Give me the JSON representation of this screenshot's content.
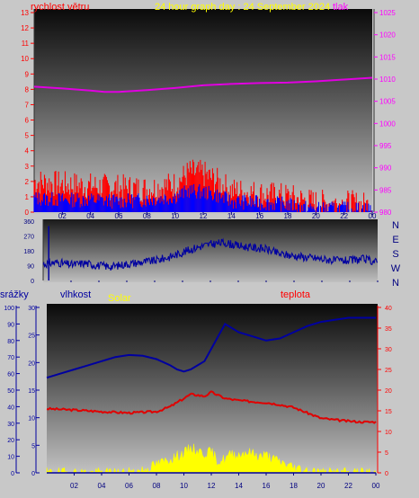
{
  "titles": {
    "wind_speed": "rychlost větru",
    "graph_title": "24 hour graph day : 24 September 2024",
    "pressure": "tlak",
    "rain": "srážky",
    "humidity": "vlhkost",
    "solar": "Solar",
    "temperature": "teplota"
  },
  "colors": {
    "wind_speed": "#ff0000",
    "wind_gust": "#ff0000",
    "wind_avg": "#0000ff",
    "pressure": "#e000e0",
    "direction": "#0000a0",
    "humidity": "#0000a0",
    "temperature": "#e00000",
    "solar": "#ffff00",
    "rain": "#0000a0",
    "title": "#ffff00",
    "left_axis": "#ff0000",
    "right_axis": "#ff00ff",
    "compass_text": "#000080",
    "rain_axis": "#0000a0",
    "temp_axis": "#ff0000"
  },
  "x_ticks": [
    "02",
    "04",
    "06",
    "08",
    "10",
    "12",
    "14",
    "16",
    "18",
    "20",
    "22",
    "00"
  ],
  "chart_data": [
    {
      "type": "line",
      "name": "wind_pressure",
      "y_left_ticks": [
        "0",
        "1",
        "2",
        "3",
        "4",
        "5",
        "6",
        "7",
        "8",
        "9",
        "10",
        "11",
        "12",
        "13"
      ],
      "y_right_ticks": [
        "980",
        "985",
        "990",
        "995",
        "1000",
        "1005",
        "1010",
        "1015",
        "1020",
        "1025"
      ],
      "ylim_left": [
        0,
        13
      ],
      "ylim_right": [
        980,
        1025
      ],
      "xlim_hours": [
        0,
        24
      ],
      "pressure": {
        "x": [
          0,
          2,
          4,
          5,
          6,
          8,
          10,
          12,
          14,
          16,
          18,
          20,
          22,
          24
        ],
        "y": [
          1008.3,
          1007.9,
          1007.4,
          1007.1,
          1007.1,
          1007.5,
          1008.0,
          1008.6,
          1008.9,
          1009.1,
          1009.2,
          1009.5,
          1009.9,
          1010.3
        ]
      },
      "wind_gust": {
        "x": [
          0,
          2,
          4,
          6,
          8,
          10,
          11,
          12,
          13,
          14,
          16,
          18,
          19,
          20,
          22,
          24
        ],
        "y": [
          2.0,
          1.8,
          1.7,
          1.6,
          1.5,
          1.8,
          2.6,
          2.5,
          2.0,
          1.4,
          1.2,
          1.0,
          0.8,
          0.6,
          0.6,
          0.4
        ]
      },
      "wind_avg": {
        "x": [
          0,
          2,
          4,
          6,
          8,
          10,
          11,
          12,
          13,
          14,
          16,
          18,
          19,
          20,
          22,
          24
        ],
        "y": [
          0.9,
          0.8,
          0.8,
          0.7,
          0.8,
          1.0,
          1.4,
          1.3,
          1.1,
          0.7,
          0.6,
          0.5,
          0.3,
          0.2,
          0.2,
          0.2
        ]
      }
    },
    {
      "type": "line",
      "name": "wind_direction",
      "y_ticks": [
        "0",
        "90",
        "180",
        "270",
        "360"
      ],
      "compass": [
        "N",
        "W",
        "S",
        "E",
        "N"
      ],
      "ylim": [
        0,
        360
      ],
      "x": [
        0,
        1,
        2,
        3,
        4,
        5,
        6,
        7,
        8,
        9,
        10,
        11,
        12,
        13,
        14,
        15,
        16,
        17,
        18,
        19,
        20,
        21,
        22,
        23,
        24
      ],
      "y": [
        100,
        110,
        95,
        105,
        90,
        85,
        100,
        110,
        120,
        140,
        170,
        200,
        220,
        230,
        210,
        200,
        190,
        160,
        150,
        140,
        130,
        120,
        120,
        130,
        110
      ]
    },
    {
      "type": "line",
      "name": "rain_humidity_temp_solar",
      "rain_ticks": [
        "0",
        "10",
        "20",
        "30",
        "40",
        "50",
        "60",
        "70",
        "80",
        "90",
        "100"
      ],
      "humidity_ticks": [
        "0",
        "5",
        "10",
        "15",
        "20",
        "25",
        "30"
      ],
      "temp_ticks": [
        "0",
        "5",
        "10",
        "15",
        "20",
        "25",
        "30",
        "35",
        "40"
      ],
      "ylim_rain": [
        0,
        100
      ],
      "ylim_humidity": [
        0,
        30
      ],
      "ylim_temp": [
        0,
        40
      ],
      "rain": {
        "x": [
          0,
          24
        ],
        "y": [
          0,
          0
        ]
      },
      "humidity_trace": {
        "x": [
          0,
          1,
          2,
          3,
          4,
          5,
          6,
          7,
          8,
          9,
          9.5,
          10,
          10.5,
          11,
          11.5,
          12,
          12.5,
          13,
          14,
          15,
          16,
          17,
          18,
          19,
          20,
          21,
          22,
          23,
          24
        ],
        "y": [
          23,
          24,
          25,
          26,
          27,
          28,
          28.5,
          28.3,
          27.5,
          26,
          25,
          24.5,
          25,
          26,
          27,
          30,
          33,
          36,
          34,
          33,
          32,
          32.5,
          34,
          35.5,
          36.5,
          37,
          37.5,
          37.5,
          37.5
        ]
      },
      "temperature": {
        "x": [
          0,
          2,
          4,
          6,
          8,
          9,
          10,
          10.5,
          11,
          11.5,
          12,
          13,
          14,
          15,
          16,
          17,
          18,
          19,
          20,
          21,
          22,
          23,
          24
        ],
        "y": [
          15.5,
          15.2,
          14.8,
          14.5,
          14.8,
          16,
          18,
          19,
          18.8,
          18.5,
          19.5,
          18,
          17.5,
          17.2,
          17.0,
          16.5,
          15.8,
          14.5,
          13.2,
          12.8,
          12.5,
          12.3,
          12.3
        ]
      },
      "solar": {
        "x": [
          0,
          6,
          7,
          8,
          9,
          10,
          10.5,
          11,
          11.5,
          12,
          12.5,
          13,
          13.5,
          14,
          14.5,
          15,
          15.5,
          16,
          16.5,
          17,
          18,
          19,
          20,
          24
        ],
        "y": [
          0,
          0,
          0.5,
          1.5,
          2.5,
          3.5,
          4.5,
          4.0,
          3.5,
          3.8,
          2.0,
          2.5,
          3.5,
          3.2,
          3.8,
          3.5,
          3.0,
          3.2,
          2.5,
          2.0,
          1.0,
          0.5,
          0,
          0
        ]
      }
    }
  ]
}
